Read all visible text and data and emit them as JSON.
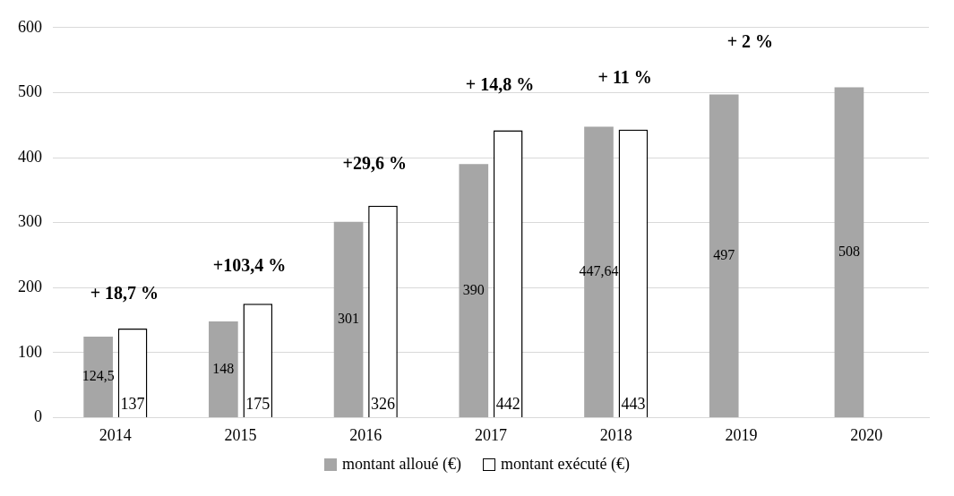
{
  "chart_data": {
    "type": "bar",
    "categories": [
      "2014",
      "2015",
      "2016",
      "2017",
      "2018",
      "2019",
      "2020"
    ],
    "series": [
      {
        "name": "montant alloué (€)",
        "color": "#a6a6a6",
        "values": [
          124.5,
          148,
          301,
          390,
          447.64,
          497,
          508
        ],
        "value_labels": [
          "124,5",
          "148",
          "301",
          "390",
          "447,64",
          "497",
          "508"
        ]
      },
      {
        "name": "montant exécuté (€)",
        "color": "#ffffff",
        "values": [
          137,
          175,
          326,
          442,
          443,
          null,
          null
        ],
        "value_labels": [
          "137",
          "175",
          "326",
          "442",
          "443",
          null,
          null
        ]
      }
    ],
    "ylim": [
      0,
      600
    ],
    "yticks": [
      0,
      100,
      200,
      300,
      400,
      500,
      600
    ],
    "grid": "y",
    "legend": "bottom",
    "annotations": [
      "+ 18,7 %",
      "+103,4 %",
      "+29,6 %",
      "+ 14,8 %",
      "+ 11 %",
      "+ 2 %"
    ]
  }
}
